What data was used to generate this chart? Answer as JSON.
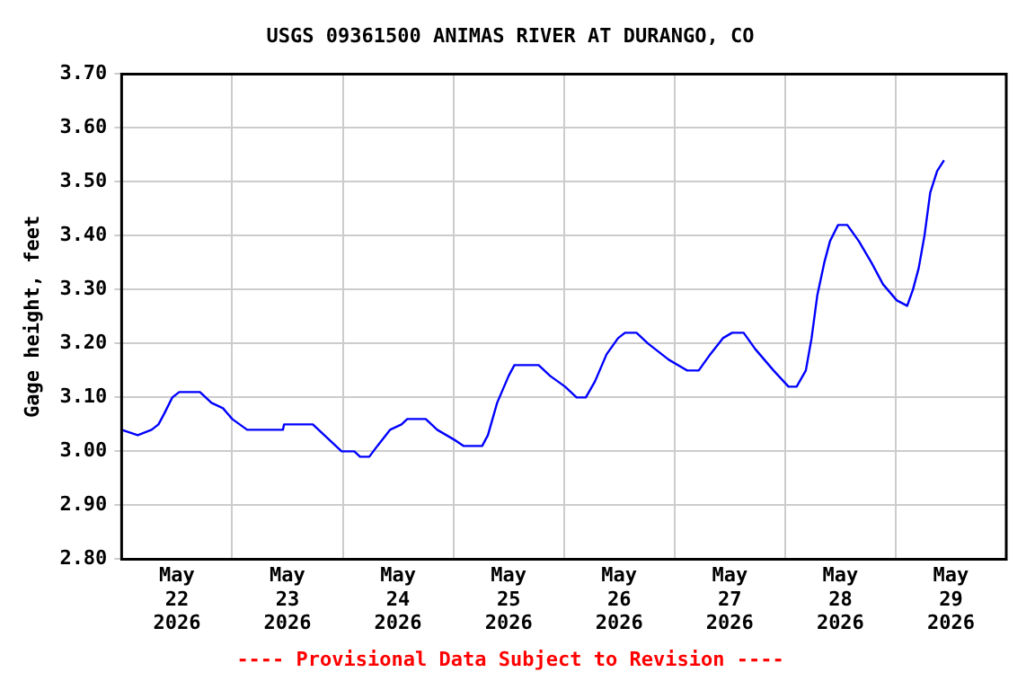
{
  "chart_data": {
    "type": "line",
    "title": "USGS 09361500 ANIMAS RIVER AT DURANGO, CO",
    "ylabel": "Gage height, feet",
    "annotations": [
      "---- Provisional Data Subject to Revision ----"
    ],
    "x": [
      "2026-05-22T00:00",
      "2026-05-22T03:30",
      "2026-05-22T06:30",
      "2026-05-22T08:00",
      "2026-05-22T09:15",
      "2026-05-22T11:00",
      "2026-05-22T12:30",
      "2026-05-22T17:00",
      "2026-05-22T19:30",
      "2026-05-22T22:00",
      "2026-05-23T00:00",
      "2026-05-23T03:15",
      "2026-05-23T11:00",
      "2026-05-23T11:15",
      "2026-05-23T17:30",
      "2026-05-23T20:00",
      "2026-05-23T22:30",
      "2026-05-23T23:45",
      "2026-05-24T02:30",
      "2026-05-24T03:45",
      "2026-05-24T05:45",
      "2026-05-24T07:30",
      "2026-05-24T10:15",
      "2026-05-24T12:45",
      "2026-05-24T14:00",
      "2026-05-24T18:00",
      "2026-05-24T20:30",
      "2026-05-25T00:30",
      "2026-05-25T02:15",
      "2026-05-25T06:15",
      "2026-05-25T07:30",
      "2026-05-25T09:30",
      "2026-05-25T12:00",
      "2026-05-25T13:15",
      "2026-05-25T18:30",
      "2026-05-25T21:00",
      "2026-05-26T00:15",
      "2026-05-26T02:45",
      "2026-05-26T04:45",
      "2026-05-26T06:45",
      "2026-05-26T09:15",
      "2026-05-26T11:45",
      "2026-05-26T13:15",
      "2026-05-26T15:45",
      "2026-05-26T18:15",
      "2026-05-26T22:45",
      "2026-05-27T02:45",
      "2026-05-27T05:15",
      "2026-05-27T07:45",
      "2026-05-27T10:30",
      "2026-05-27T12:30",
      "2026-05-27T15:00",
      "2026-05-27T17:30",
      "2026-05-27T21:30",
      "2026-05-28T00:45",
      "2026-05-28T02:30",
      "2026-05-28T04:30",
      "2026-05-28T05:45",
      "2026-05-28T07:00",
      "2026-05-28T08:30",
      "2026-05-28T09:45",
      "2026-05-28T11:30",
      "2026-05-28T13:30",
      "2026-05-28T16:00",
      "2026-05-28T18:45",
      "2026-05-28T21:15",
      "2026-05-29T00:15",
      "2026-05-29T02:30",
      "2026-05-29T03:45",
      "2026-05-29T05:00",
      "2026-05-29T06:15",
      "2026-05-29T07:30",
      "2026-05-29T09:00",
      "2026-05-29T10:30"
    ],
    "series": [
      {
        "color": "#0000ff",
        "values": [
          3.04,
          3.03,
          3.04,
          3.05,
          3.07,
          3.1,
          3.11,
          3.11,
          3.09,
          3.08,
          3.06,
          3.04,
          3.04,
          3.05,
          3.05,
          3.03,
          3.01,
          3.0,
          3.0,
          2.99,
          2.99,
          3.01,
          3.04,
          3.05,
          3.06,
          3.06,
          3.04,
          3.02,
          3.01,
          3.01,
          3.03,
          3.09,
          3.14,
          3.16,
          3.16,
          3.14,
          3.12,
          3.1,
          3.1,
          3.13,
          3.18,
          3.21,
          3.22,
          3.22,
          3.2,
          3.17,
          3.15,
          3.15,
          3.18,
          3.21,
          3.22,
          3.22,
          3.19,
          3.15,
          3.12,
          3.12,
          3.15,
          3.21,
          3.29,
          3.35,
          3.39,
          3.42,
          3.42,
          3.39,
          3.35,
          3.31,
          3.28,
          3.27,
          3.3,
          3.34,
          3.4,
          3.48,
          3.52,
          3.54
        ]
      }
    ],
    "xlim": [
      "2026-05-22",
      "2026-05-30"
    ],
    "xticks": [
      {
        "value": "2026-05-22T12:00",
        "label": "May 22 2026"
      },
      {
        "value": "2026-05-23T00:00",
        "label": null
      },
      {
        "value": "2026-05-23T12:00",
        "label": "May 23 2026"
      },
      {
        "value": "2026-05-24T00:00",
        "label": null
      },
      {
        "value": "2026-05-24T12:00",
        "label": "May 24 2026"
      },
      {
        "value": "2026-05-25T00:00",
        "label": null
      },
      {
        "value": "2026-05-25T12:00",
        "label": "May 25 2026"
      },
      {
        "value": "2026-05-26T00:00",
        "label": null
      },
      {
        "value": "2026-05-26T12:00",
        "label": "May 26 2026"
      },
      {
        "value": "2026-05-27T00:00",
        "label": null
      },
      {
        "value": "2026-05-27T12:00",
        "label": "May 27 2026"
      },
      {
        "value": "2026-05-28T00:00",
        "label": null
      },
      {
        "value": "2026-05-28T12:00",
        "label": "May 28 2026"
      },
      {
        "value": "2026-05-29T00:00",
        "label": null
      },
      {
        "value": "2026-05-29T12:00",
        "label": "May 29 2026"
      }
    ],
    "ylim": [
      2.8,
      3.7
    ],
    "yticks": [
      {
        "value": 2.8,
        "label": "2.80"
      },
      {
        "value": 2.9,
        "label": "2.90"
      },
      {
        "value": 3.0,
        "label": "3.00"
      },
      {
        "value": 3.1,
        "label": "3.10"
      },
      {
        "value": 3.2,
        "label": "3.20"
      },
      {
        "value": 3.3,
        "label": "3.30"
      },
      {
        "value": 3.4,
        "label": "3.40"
      },
      {
        "value": 3.5,
        "label": "3.50"
      },
      {
        "value": 3.6,
        "label": "3.60"
      },
      {
        "value": 3.7,
        "label": "3.70"
      }
    ],
    "grid": true,
    "legend": false,
    "marker": "none",
    "line_style": "solid"
  }
}
